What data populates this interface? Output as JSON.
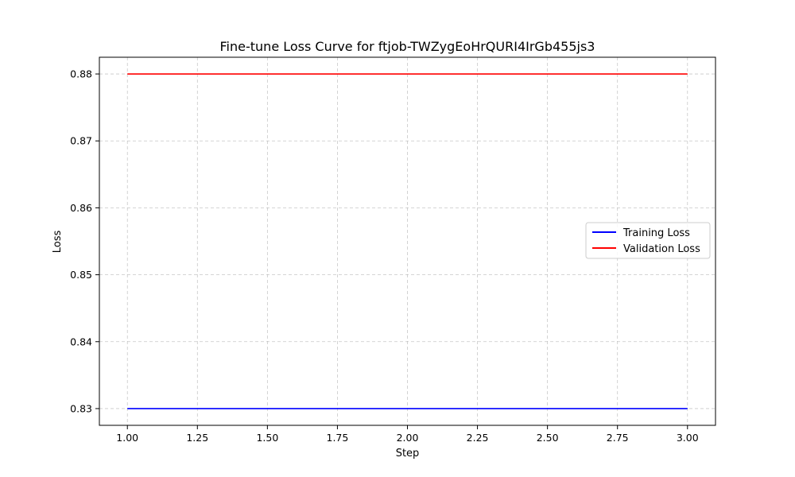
{
  "chart_data": {
    "type": "line",
    "title": "Fine-tune Loss Curve for ftjob-TWZygEoHrQURI4IrGb455js3",
    "xlabel": "Step",
    "ylabel": "Loss",
    "x": [
      1,
      2,
      3
    ],
    "xlim": [
      0.9,
      3.1
    ],
    "ylim": [
      0.8275,
      0.8825
    ],
    "xticks": [
      1.0,
      1.25,
      1.5,
      1.75,
      2.0,
      2.25,
      2.5,
      2.75,
      3.0
    ],
    "xtick_labels": [
      "1.00",
      "1.25",
      "1.50",
      "1.75",
      "2.00",
      "2.25",
      "2.50",
      "2.75",
      "3.00"
    ],
    "yticks": [
      0.83,
      0.84,
      0.85,
      0.86,
      0.87,
      0.88
    ],
    "ytick_labels": [
      "0.83",
      "0.84",
      "0.85",
      "0.86",
      "0.87",
      "0.88"
    ],
    "grid": true,
    "legend_position": "center-right",
    "series": [
      {
        "name": "Training Loss",
        "color": "#0000ff",
        "values": [
          0.83,
          0.83,
          0.83
        ]
      },
      {
        "name": "Validation Loss",
        "color": "#ff0000",
        "values": [
          0.88,
          0.88,
          0.88
        ]
      }
    ]
  }
}
